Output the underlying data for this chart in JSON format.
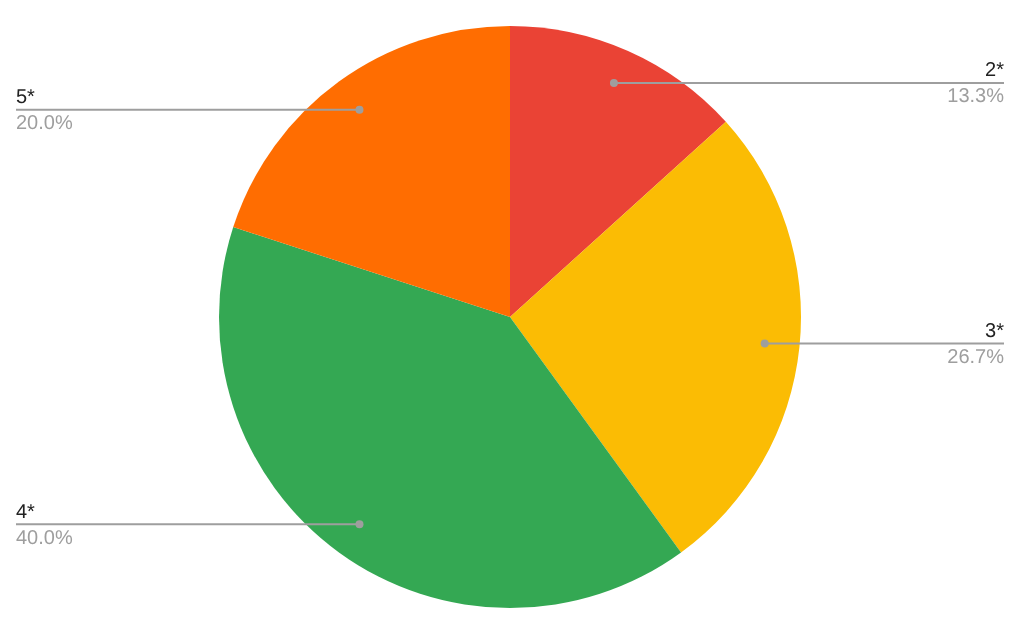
{
  "chart_data": {
    "type": "pie",
    "categories": [
      "2*",
      "3*",
      "4*",
      "5*"
    ],
    "values": [
      13.3,
      26.7,
      40.0,
      20.0
    ],
    "value_labels": [
      "13.3%",
      "26.7%",
      "40.0%",
      "20.0%"
    ],
    "colors": [
      "#ea4335",
      "#fbbc04",
      "#34a853",
      "#ff6d01"
    ],
    "legend": false
  }
}
